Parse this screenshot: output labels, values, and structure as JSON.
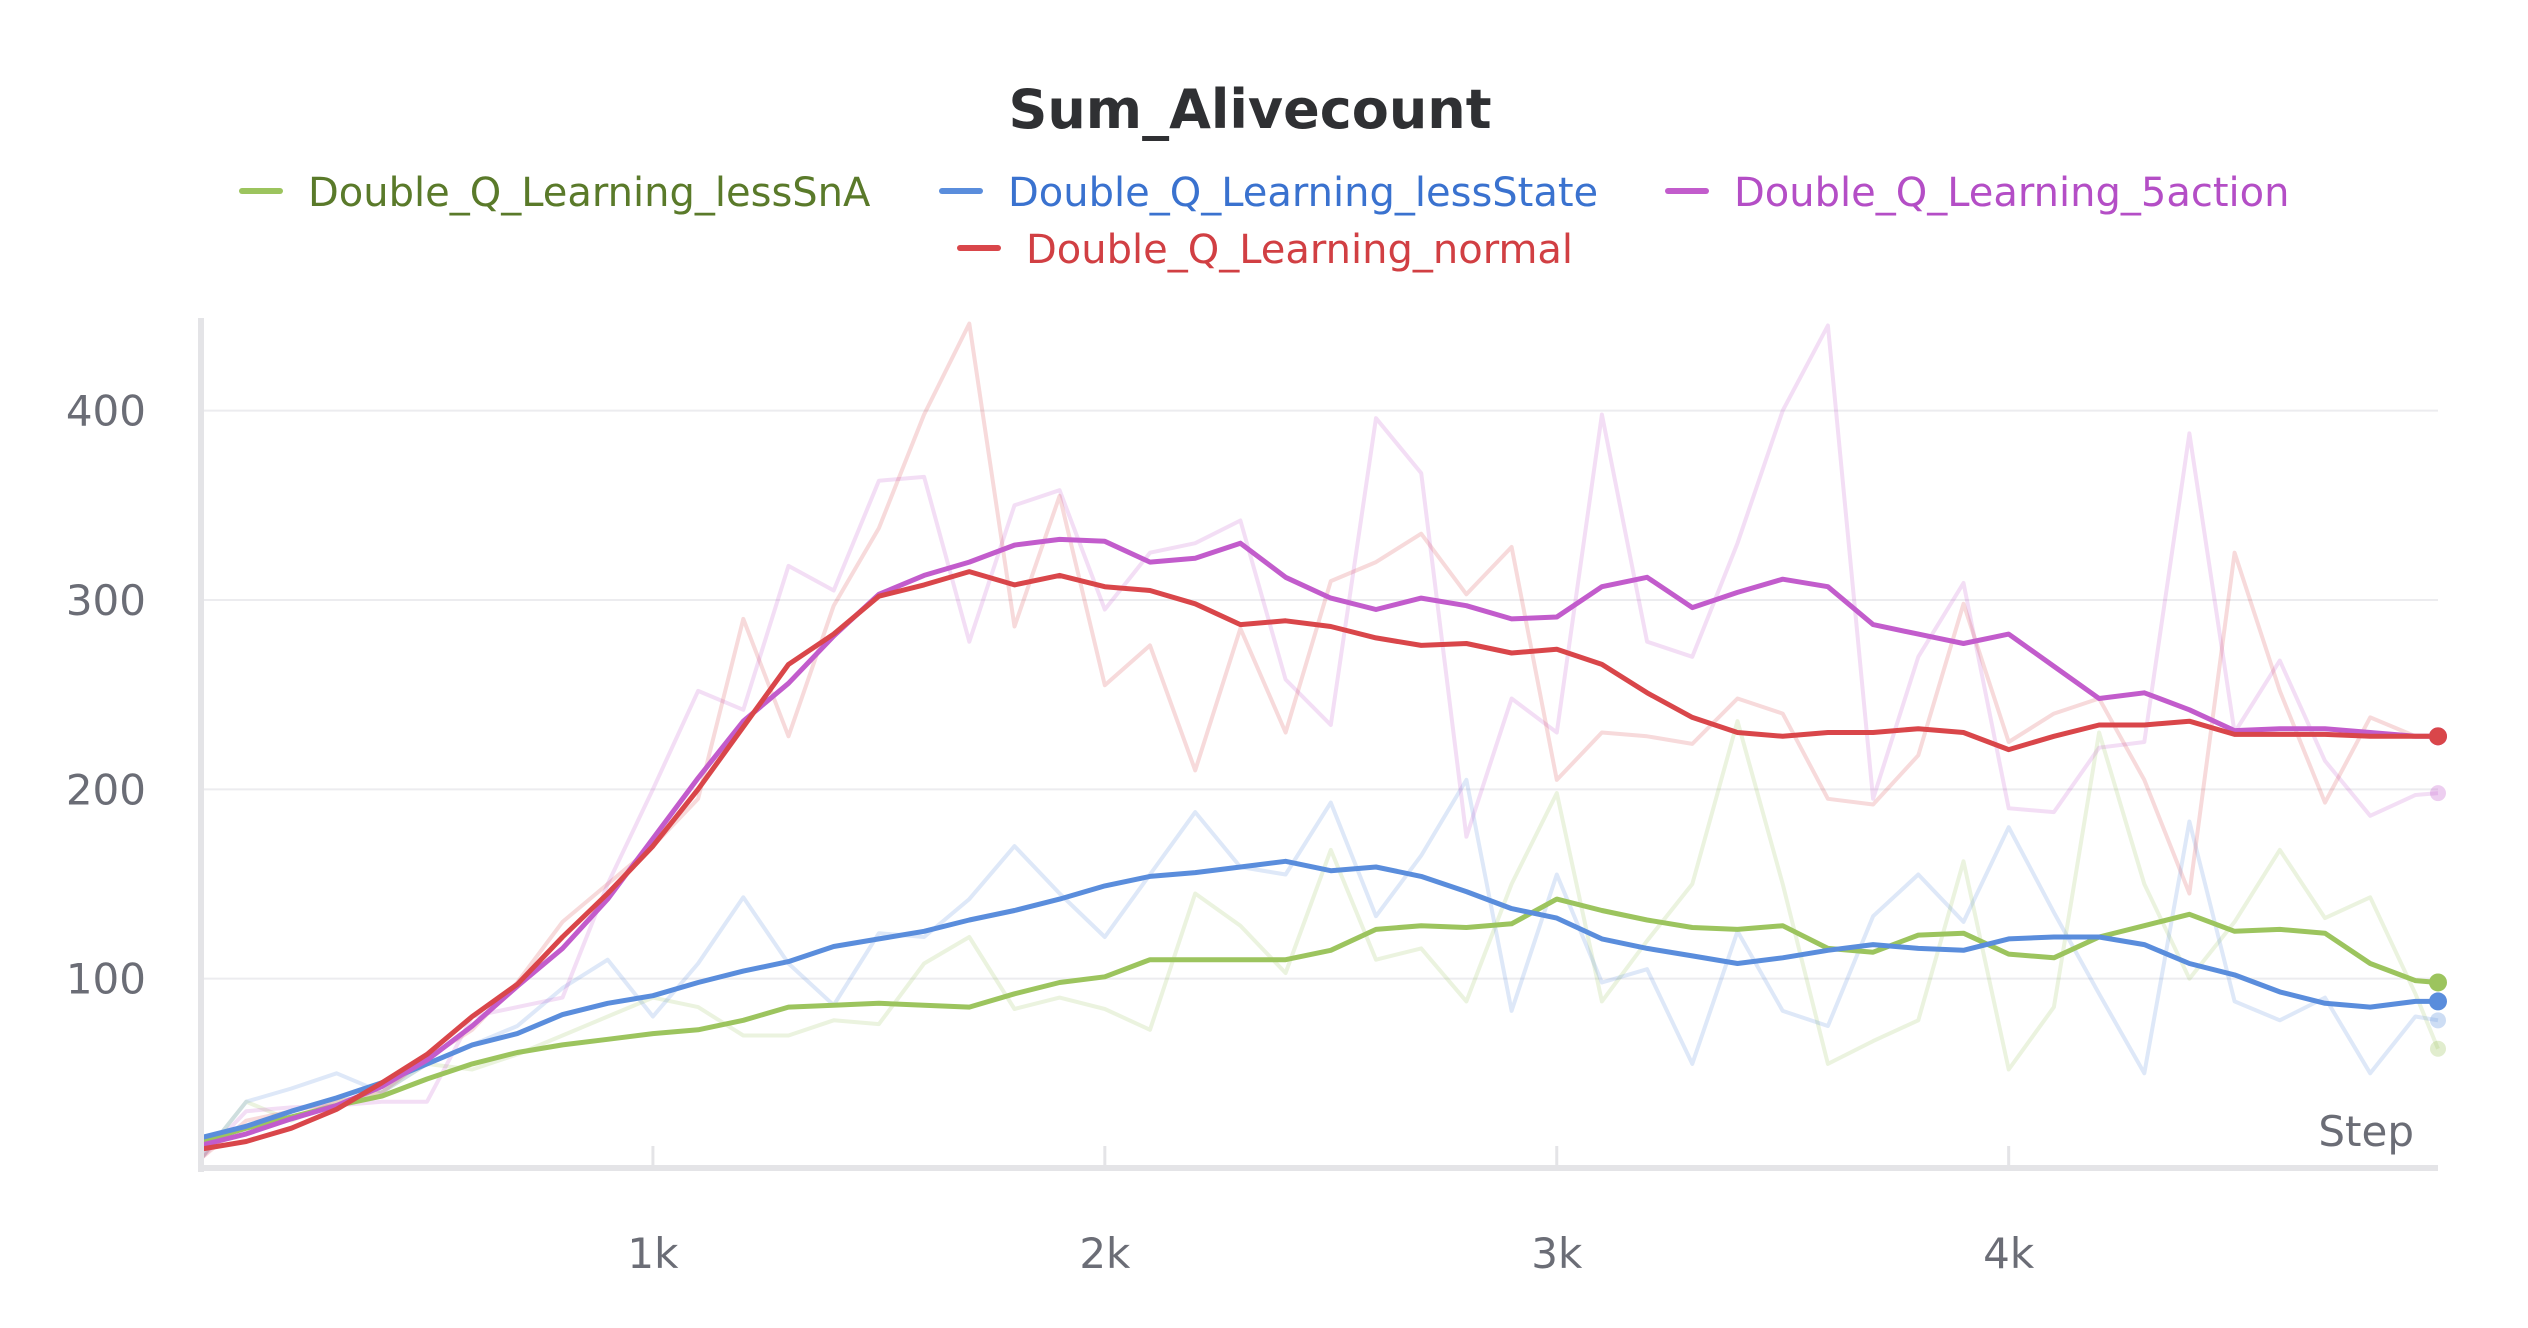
{
  "chart_data": {
    "type": "line",
    "title": "Sum_Alivecount",
    "xlabel": "Step",
    "ylabel": "",
    "xlim": [
      0,
      4950
    ],
    "ylim": [
      0,
      450
    ],
    "xticks": [
      1000,
      2000,
      3000,
      4000
    ],
    "xtick_labels": [
      "1k",
      "2k",
      "3k",
      "4k"
    ],
    "yticks": [
      100,
      200,
      300,
      400
    ],
    "ytick_labels": [
      "100",
      "200",
      "300",
      "400"
    ],
    "grid": "horizontal",
    "legend_position": "top",
    "x": [
      0,
      100,
      200,
      300,
      400,
      500,
      600,
      700,
      800,
      900,
      1000,
      1100,
      1200,
      1300,
      1400,
      1500,
      1600,
      1700,
      1800,
      1900,
      2000,
      2100,
      2200,
      2300,
      2400,
      2500,
      2600,
      2700,
      2800,
      2900,
      3000,
      3100,
      3200,
      3300,
      3400,
      3500,
      3600,
      3700,
      3800,
      3900,
      4000,
      4100,
      4200,
      4300,
      4400,
      4500,
      4600,
      4700,
      4800,
      4900,
      4950
    ],
    "series": [
      {
        "name": "Double_Q_Learning_lessSnA",
        "color": "#9cc45e",
        "legend_text_color": "#5a7a2a",
        "smoothed": [
          14,
          21,
          27,
          33,
          38,
          47,
          55,
          61,
          65,
          68,
          71,
          73,
          78,
          85,
          86,
          87,
          86,
          85,
          92,
          98,
          101,
          110,
          110,
          110,
          110,
          115,
          126,
          128,
          127,
          129,
          142,
          136,
          131,
          127,
          126,
          128,
          116,
          114,
          123,
          124,
          113,
          111,
          122,
          128,
          134,
          125,
          126,
          124,
          108,
          99,
          98
        ],
        "raw": [
          5,
          35,
          25,
          35,
          40,
          55,
          52,
          60,
          70,
          80,
          90,
          85,
          70,
          70,
          78,
          76,
          108,
          122,
          84,
          90,
          84,
          73,
          145,
          128,
          103,
          168,
          110,
          116,
          88,
          150,
          198,
          88,
          120,
          150,
          236,
          150,
          55,
          67,
          78,
          162,
          52,
          85,
          230,
          150,
          100,
          130,
          168,
          132,
          143,
          92,
          63
        ]
      },
      {
        "name": "Double_Q_Learning_lessState",
        "color": "#5a8ddc",
        "legend_text_color": "#3a72cf",
        "smoothed": [
          16,
          22,
          30,
          37,
          45,
          55,
          65,
          71,
          81,
          87,
          91,
          98,
          104,
          109,
          117,
          121,
          125,
          131,
          136,
          142,
          149,
          154,
          156,
          159,
          162,
          157,
          159,
          154,
          146,
          137,
          132,
          121,
          116,
          112,
          108,
          111,
          115,
          118,
          116,
          115,
          121,
          122,
          122,
          118,
          108,
          102,
          93,
          87,
          85,
          88,
          88
        ],
        "raw": [
          5,
          35,
          42,
          50,
          40,
          55,
          65,
          75,
          95,
          110,
          80,
          108,
          143,
          108,
          86,
          124,
          122,
          142,
          170,
          145,
          122,
          155,
          188,
          159,
          155,
          193,
          133,
          165,
          205,
          83,
          155,
          98,
          105,
          55,
          125,
          83,
          75,
          133,
          155,
          130,
          180,
          135,
          92,
          50,
          183,
          88,
          78,
          90,
          50,
          80,
          78
        ]
      },
      {
        "name": "Double_Q_Learning_5action",
        "color": "#c25ccc",
        "legend_text_color": "#b44ec6",
        "smoothed": [
          12,
          18,
          26,
          33,
          43,
          57,
          75,
          96,
          116,
          142,
          174,
          206,
          236,
          256,
          281,
          303,
          313,
          320,
          329,
          332,
          331,
          320,
          322,
          330,
          312,
          301,
          295,
          301,
          297,
          290,
          291,
          307,
          312,
          296,
          304,
          311,
          307,
          287,
          282,
          277,
          282,
          265,
          248,
          251,
          242,
          231,
          232,
          232,
          230,
          228,
          228
        ],
        "raw": [
          5,
          30,
          32,
          33,
          35,
          35,
          80,
          85,
          90,
          150,
          200,
          252,
          242,
          318,
          305,
          363,
          365,
          278,
          350,
          358,
          295,
          325,
          330,
          342,
          258,
          234,
          396,
          367,
          175,
          248,
          230,
          398,
          278,
          270,
          330,
          400,
          445,
          195,
          270,
          309,
          190,
          188,
          222,
          225,
          388,
          230,
          268,
          215,
          186,
          197,
          198
        ]
      },
      {
        "name": "Double_Q_Learning_normal",
        "color": "#d9464a",
        "legend_text_color": "#d13f43",
        "smoothed": [
          10,
          14,
          21,
          31,
          45,
          60,
          80,
          97,
          122,
          145,
          170,
          200,
          233,
          266,
          282,
          302,
          308,
          315,
          308,
          313,
          307,
          305,
          298,
          287,
          289,
          286,
          280,
          276,
          277,
          272,
          274,
          266,
          251,
          238,
          230,
          228,
          230,
          230,
          232,
          230,
          221,
          228,
          234,
          234,
          236,
          229,
          229,
          229,
          228,
          228,
          228
        ],
        "raw": [
          5,
          25,
          30,
          35,
          40,
          58,
          73,
          98,
          130,
          150,
          170,
          195,
          290,
          228,
          297,
          338,
          398,
          446,
          286,
          355,
          255,
          276,
          210,
          285,
          230,
          310,
          320,
          335,
          303,
          328,
          205,
          230,
          228,
          224,
          248,
          240,
          195,
          192,
          218,
          298,
          225,
          240,
          248,
          205,
          145,
          325,
          252,
          193,
          238,
          228,
          228
        ]
      }
    ]
  }
}
